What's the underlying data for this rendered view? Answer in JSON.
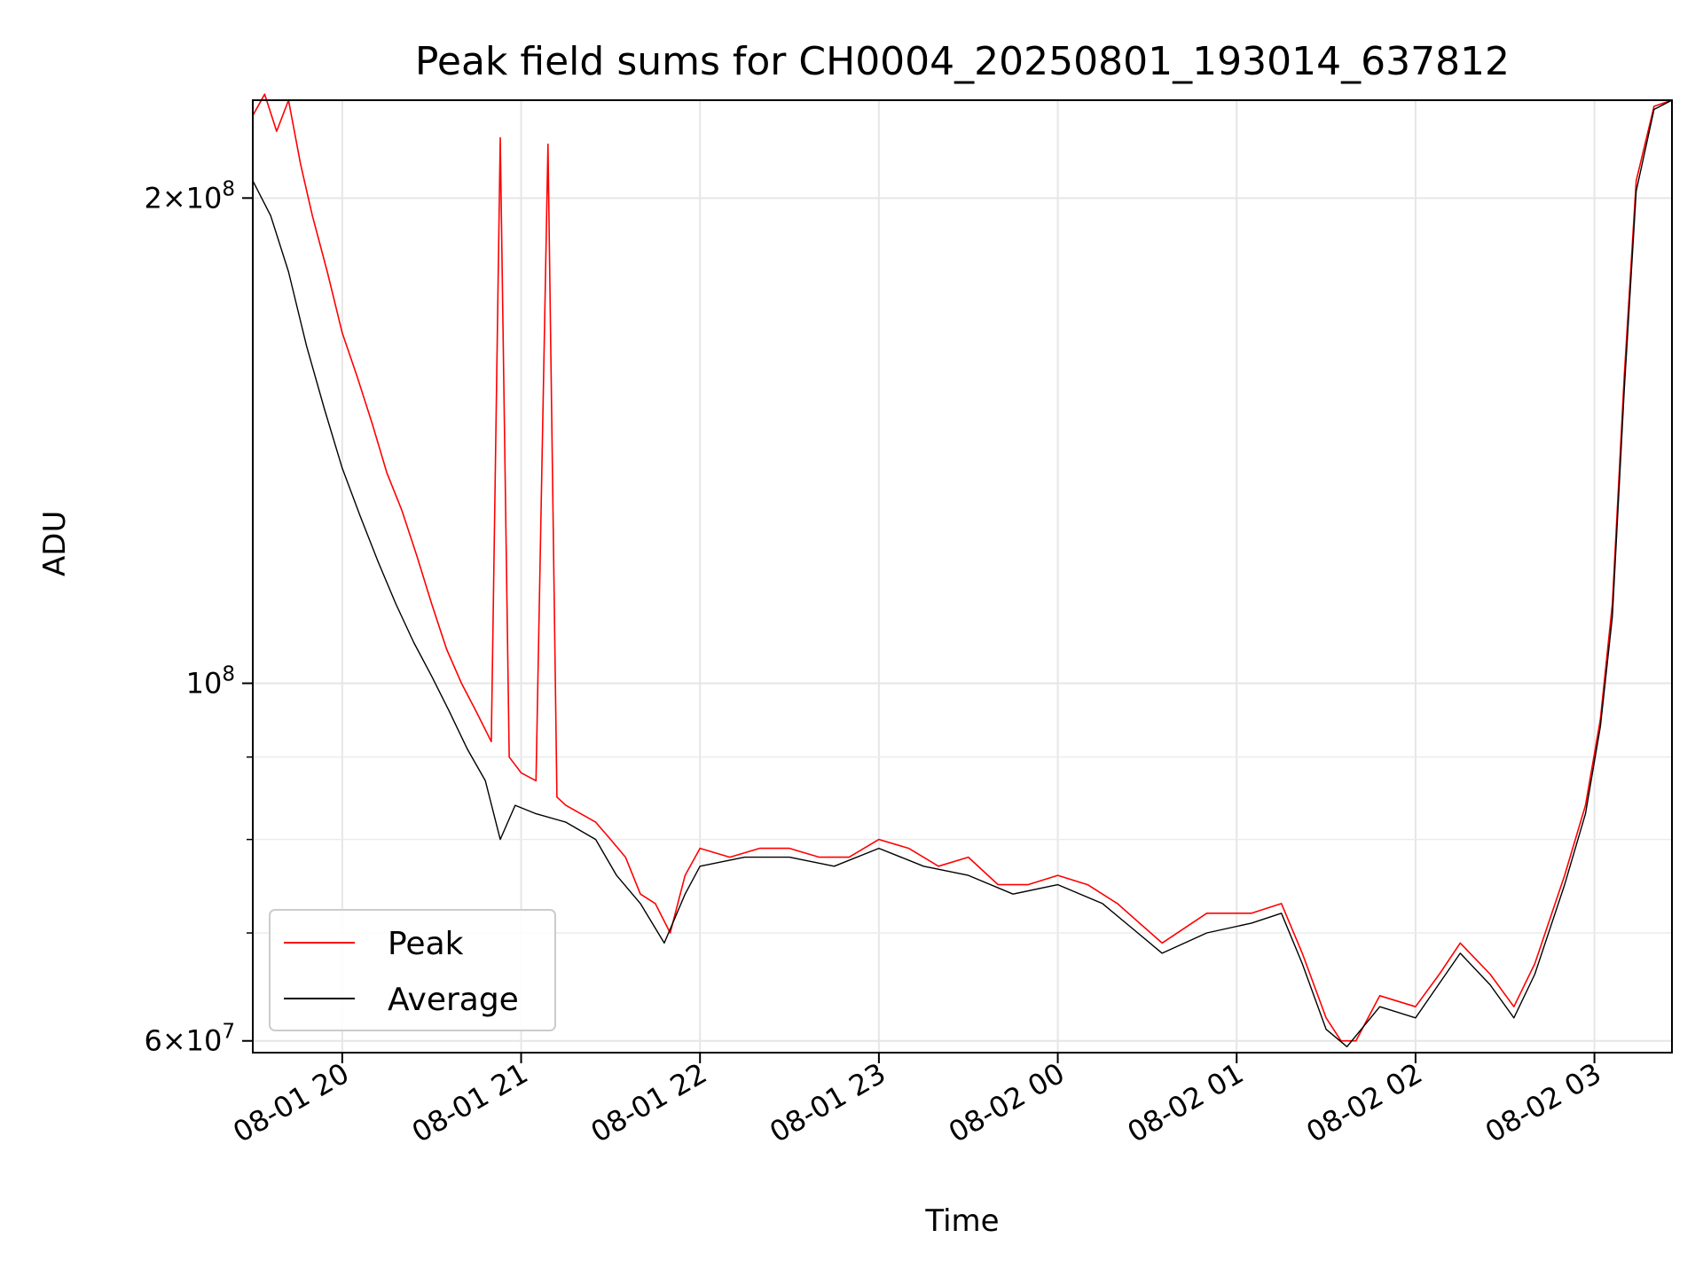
{
  "chart_data": {
    "type": "line",
    "title": "Peak field sums for CH0004_20250801_193014_637812",
    "xlabel": "Time",
    "ylabel": "ADU",
    "y_scale": "log",
    "ylim": [
      59000000.0,
      230000000.0
    ],
    "xlim": [
      "2025-08-01 19:30",
      "2025-08-02 03:26"
    ],
    "grid": true,
    "legend_placement": "lower-left",
    "x_ticks": [
      {
        "t": "2025-08-01 20:00",
        "label": "08-01 20"
      },
      {
        "t": "2025-08-01 21:00",
        "label": "08-01 21"
      },
      {
        "t": "2025-08-01 22:00",
        "label": "08-01 22"
      },
      {
        "t": "2025-08-01 23:00",
        "label": "08-01 23"
      },
      {
        "t": "2025-08-02 00:00",
        "label": "08-02 00"
      },
      {
        "t": "2025-08-02 01:00",
        "label": "08-02 01"
      },
      {
        "t": "2025-08-02 02:00",
        "label": "08-02 02"
      },
      {
        "t": "2025-08-02 03:00",
        "label": "08-02 03"
      }
    ],
    "y_major_ticks": [
      {
        "v": 60000000,
        "mant": "6",
        "base": "10",
        "exp": "7"
      },
      {
        "v": 100000000,
        "mant": "",
        "base": "10",
        "exp": "8"
      },
      {
        "v": 200000000,
        "mant": "2",
        "base": "10",
        "exp": "8"
      }
    ],
    "y_minor_ticks": [
      70000000,
      80000000,
      90000000
    ],
    "series": [
      {
        "name": "Peak",
        "color": "#ff0000",
        "points": [
          [
            "2025-08-01 19:30",
            225000000.0
          ],
          [
            "2025-08-01 19:34",
            232000000.0
          ],
          [
            "2025-08-01 19:38",
            220000000.0
          ],
          [
            "2025-08-01 19:42",
            230000000.0
          ],
          [
            "2025-08-01 19:46",
            210000000.0
          ],
          [
            "2025-08-01 19:50",
            195000000.0
          ],
          [
            "2025-08-01 19:55",
            180000000.0
          ],
          [
            "2025-08-01 20:00",
            165000000.0
          ],
          [
            "2025-08-01 20:05",
            155000000.0
          ],
          [
            "2025-08-01 20:10",
            145000000.0
          ],
          [
            "2025-08-01 20:15",
            135000000.0
          ],
          [
            "2025-08-01 20:20",
            128000000.0
          ],
          [
            "2025-08-01 20:25",
            120000000.0
          ],
          [
            "2025-08-01 20:30",
            112000000.0
          ],
          [
            "2025-08-01 20:35",
            105000000.0
          ],
          [
            "2025-08-01 20:40",
            100000000.0
          ],
          [
            "2025-08-01 20:45",
            96000000.0
          ],
          [
            "2025-08-01 20:50",
            92000000.0
          ],
          [
            "2025-08-01 20:53",
            218000000.0
          ],
          [
            "2025-08-01 20:56",
            90000000.0
          ],
          [
            "2025-08-01 21:00",
            88000000.0
          ],
          [
            "2025-08-01 21:05",
            87000000.0
          ],
          [
            "2025-08-01 21:09",
            216000000.0
          ],
          [
            "2025-08-01 21:12",
            85000000.0
          ],
          [
            "2025-08-01 21:15",
            84000000.0
          ],
          [
            "2025-08-01 21:20",
            83000000.0
          ],
          [
            "2025-08-01 21:25",
            82000000.0
          ],
          [
            "2025-08-01 21:30",
            80000000.0
          ],
          [
            "2025-08-01 21:35",
            78000000.0
          ],
          [
            "2025-08-01 21:40",
            74000000.0
          ],
          [
            "2025-08-01 21:45",
            73000000.0
          ],
          [
            "2025-08-01 21:50",
            70000000.0
          ],
          [
            "2025-08-01 21:55",
            76000000.0
          ],
          [
            "2025-08-01 22:00",
            79000000.0
          ],
          [
            "2025-08-01 22:10",
            78000000.0
          ],
          [
            "2025-08-01 22:20",
            79000000.0
          ],
          [
            "2025-08-01 22:30",
            79000000.0
          ],
          [
            "2025-08-01 22:40",
            78000000.0
          ],
          [
            "2025-08-01 22:50",
            78000000.0
          ],
          [
            "2025-08-01 23:00",
            80000000.0
          ],
          [
            "2025-08-01 23:10",
            79000000.0
          ],
          [
            "2025-08-01 23:20",
            77000000.0
          ],
          [
            "2025-08-01 23:30",
            78000000.0
          ],
          [
            "2025-08-01 23:40",
            75000000.0
          ],
          [
            "2025-08-01 23:50",
            75000000.0
          ],
          [
            "2025-08-02 00:00",
            76000000.0
          ],
          [
            "2025-08-02 00:10",
            75000000.0
          ],
          [
            "2025-08-02 00:20",
            73000000.0
          ],
          [
            "2025-08-02 00:35",
            69000000.0
          ],
          [
            "2025-08-02 00:50",
            72000000.0
          ],
          [
            "2025-08-02 01:05",
            72000000.0
          ],
          [
            "2025-08-02 01:15",
            73000000.0
          ],
          [
            "2025-08-02 01:22",
            68000000.0
          ],
          [
            "2025-08-02 01:30",
            62000000.0
          ],
          [
            "2025-08-02 01:35",
            60000000.0
          ],
          [
            "2025-08-02 01:40",
            60000000.0
          ],
          [
            "2025-08-02 01:48",
            64000000.0
          ],
          [
            "2025-08-02 02:00",
            63000000.0
          ],
          [
            "2025-08-02 02:08",
            66000000.0
          ],
          [
            "2025-08-02 02:15",
            69000000.0
          ],
          [
            "2025-08-02 02:25",
            66000000.0
          ],
          [
            "2025-08-02 02:33",
            63000000.0
          ],
          [
            "2025-08-02 02:40",
            67000000.0
          ],
          [
            "2025-08-02 02:50",
            76000000.0
          ],
          [
            "2025-08-02 02:57",
            84000000.0
          ],
          [
            "2025-08-02 03:02",
            95000000.0
          ],
          [
            "2025-08-02 03:06",
            112000000.0
          ],
          [
            "2025-08-02 03:10",
            155000000.0
          ],
          [
            "2025-08-02 03:14",
            205000000.0
          ],
          [
            "2025-08-02 03:20",
            228000000.0
          ],
          [
            "2025-08-02 03:26",
            230000000.0
          ]
        ]
      },
      {
        "name": "Average",
        "color": "#000000",
        "points": [
          [
            "2025-08-01 19:30",
            205000000.0
          ],
          [
            "2025-08-01 19:36",
            195000000.0
          ],
          [
            "2025-08-01 19:42",
            180000000.0
          ],
          [
            "2025-08-01 19:48",
            162000000.0
          ],
          [
            "2025-08-01 19:54",
            148000000.0
          ],
          [
            "2025-08-01 20:00",
            136000000.0
          ],
          [
            "2025-08-01 20:06",
            127000000.0
          ],
          [
            "2025-08-01 20:12",
            119000000.0
          ],
          [
            "2025-08-01 20:18",
            112000000.0
          ],
          [
            "2025-08-01 20:24",
            106000000.0
          ],
          [
            "2025-08-01 20:30",
            101000000.0
          ],
          [
            "2025-08-01 20:36",
            96000000.0
          ],
          [
            "2025-08-01 20:42",
            91000000.0
          ],
          [
            "2025-08-01 20:48",
            87000000.0
          ],
          [
            "2025-08-01 20:53",
            80000000.0
          ],
          [
            "2025-08-01 20:58",
            84000000.0
          ],
          [
            "2025-08-01 21:05",
            83000000.0
          ],
          [
            "2025-08-01 21:15",
            82000000.0
          ],
          [
            "2025-08-01 21:25",
            80000000.0
          ],
          [
            "2025-08-01 21:32",
            76000000.0
          ],
          [
            "2025-08-01 21:40",
            73000000.0
          ],
          [
            "2025-08-01 21:48",
            69000000.0
          ],
          [
            "2025-08-01 21:55",
            74000000.0
          ],
          [
            "2025-08-01 22:00",
            77000000.0
          ],
          [
            "2025-08-01 22:15",
            78000000.0
          ],
          [
            "2025-08-01 22:30",
            78000000.0
          ],
          [
            "2025-08-01 22:45",
            77000000.0
          ],
          [
            "2025-08-01 23:00",
            79000000.0
          ],
          [
            "2025-08-01 23:15",
            77000000.0
          ],
          [
            "2025-08-01 23:30",
            76000000.0
          ],
          [
            "2025-08-01 23:45",
            74000000.0
          ],
          [
            "2025-08-02 00:00",
            75000000.0
          ],
          [
            "2025-08-02 00:15",
            73000000.0
          ],
          [
            "2025-08-02 00:35",
            68000000.0
          ],
          [
            "2025-08-02 00:50",
            70000000.0
          ],
          [
            "2025-08-02 01:05",
            71000000.0
          ],
          [
            "2025-08-02 01:15",
            72000000.0
          ],
          [
            "2025-08-02 01:22",
            67000000.0
          ],
          [
            "2025-08-02 01:30",
            61000000.0
          ],
          [
            "2025-08-02 01:37",
            59500000.0
          ],
          [
            "2025-08-02 01:48",
            63000000.0
          ],
          [
            "2025-08-02 02:00",
            62000000.0
          ],
          [
            "2025-08-02 02:15",
            68000000.0
          ],
          [
            "2025-08-02 02:25",
            65000000.0
          ],
          [
            "2025-08-02 02:33",
            62000000.0
          ],
          [
            "2025-08-02 02:40",
            66000000.0
          ],
          [
            "2025-08-02 02:50",
            75000000.0
          ],
          [
            "2025-08-02 02:57",
            83000000.0
          ],
          [
            "2025-08-02 03:02",
            94000000.0
          ],
          [
            "2025-08-02 03:06",
            110000000.0
          ],
          [
            "2025-08-02 03:10",
            152000000.0
          ],
          [
            "2025-08-02 03:14",
            202000000.0
          ],
          [
            "2025-08-02 03:20",
            227000000.0
          ],
          [
            "2025-08-02 03:26",
            230000000.0
          ]
        ]
      }
    ]
  }
}
